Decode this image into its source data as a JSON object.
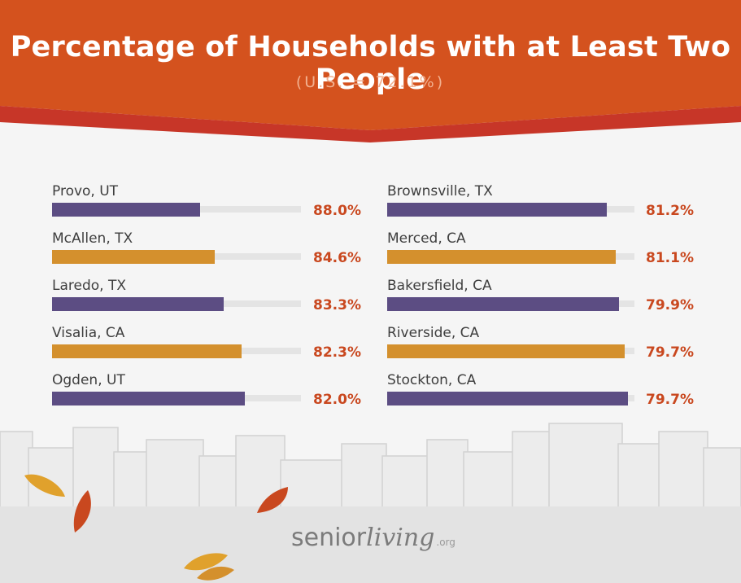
{
  "chart_data": {
    "type": "bar",
    "title": "Percentage of Households with at Least Two People",
    "subtitle": "(U.S. = 72.1%)",
    "panels": [
      {
        "categories": [
          "Provo, UT",
          "McAllen, TX",
          "Laredo, TX",
          "Visalia, CA",
          "Ogden, UT"
        ],
        "values": [
          88.0,
          84.6,
          83.3,
          82.3,
          82.0
        ],
        "labels": [
          "88.0%",
          "84.6%",
          "83.3%",
          "82.3%",
          "82.0%"
        ]
      },
      {
        "categories": [
          "Brownsville, TX",
          "Merced, CA",
          "Bakersfield, CA",
          "Riverside, CA",
          "Stockton, CA"
        ],
        "values": [
          81.2,
          81.1,
          79.9,
          79.7,
          79.7
        ],
        "labels": [
          "81.2%",
          "81.1%",
          "79.9%",
          "79.7%",
          "79.7%"
        ]
      }
    ],
    "colors": {
      "bar_purple": "#5c4d83",
      "bar_orange": "#d4902d",
      "track": "#e4e4e4",
      "value_text": "#c9481f",
      "label_text": "#3e3e3e"
    }
  },
  "header": {
    "bg_color": "#d4521e",
    "band_color": "#c73628"
  },
  "footer": {
    "brand_a": "senior",
    "brand_b": "living",
    "brand_tld": ".org"
  },
  "decorations": [
    "leaf-icon",
    "skyline-illustration"
  ]
}
